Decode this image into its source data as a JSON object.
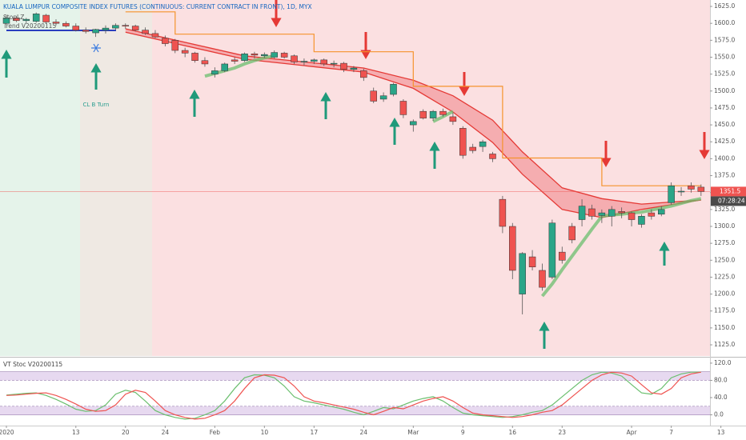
{
  "chart_data": [
    {
      "type": "candlestick",
      "title": "KUALA LUMPUR COMPOSITE INDEX FUTURES (CONTINUOUS: CURRENT CONTRACT IN FRONT), 1D, MYX",
      "legend": [
        "StopLZ",
        "Trend V20200115"
      ],
      "annotation": "CL B Turn",
      "countdown": "07:28:24",
      "last_price": 1351.5,
      "up_color": "#2aa588",
      "down_color": "#ef5350",
      "xlim": [
        -0.645,
        70.9
      ],
      "xticks": [
        {
          "value": 0,
          "label": "2020"
        },
        {
          "value": 7,
          "label": "13"
        },
        {
          "value": 12,
          "label": "20"
        },
        {
          "value": 16,
          "label": "24"
        },
        {
          "value": 21,
          "label": "Feb"
        },
        {
          "value": 26,
          "label": "10"
        },
        {
          "value": 31,
          "label": "17"
        },
        {
          "value": 36,
          "label": "24"
        },
        {
          "value": 41,
          "label": "Mar"
        },
        {
          "value": 46,
          "label": "9"
        },
        {
          "value": 51,
          "label": "16"
        },
        {
          "value": 56,
          "label": "23"
        },
        {
          "value": 63,
          "label": "Apr"
        },
        {
          "value": 67,
          "label": "7"
        },
        {
          "value": 72,
          "label": "13"
        }
      ],
      "ylim": [
        1108.5,
        1634.5
      ],
      "yticks": [
        {
          "value": 1125,
          "label": "1125.0"
        },
        {
          "value": 1150,
          "label": "1150.0"
        },
        {
          "value": 1175,
          "label": "1175.0"
        },
        {
          "value": 1200,
          "label": "1200.0"
        },
        {
          "value": 1225,
          "label": "1225.0"
        },
        {
          "value": 1250,
          "label": "1250.0"
        },
        {
          "value": 1275,
          "label": "1275.0"
        },
        {
          "value": 1300,
          "label": "1300.0"
        },
        {
          "value": 1325,
          "label": "1325.0"
        },
        {
          "value": 1350,
          "label": "1350.0"
        },
        {
          "value": 1375,
          "label": "1375.0"
        },
        {
          "value": 1400,
          "label": "1400.0"
        },
        {
          "value": 1425,
          "label": "1425.0"
        },
        {
          "value": 1450,
          "label": "1450.0"
        },
        {
          "value": 1475,
          "label": "1475.0"
        },
        {
          "value": 1500,
          "label": "1500.0"
        },
        {
          "value": 1525,
          "label": "1525.0"
        },
        {
          "value": 1550,
          "label": "1550.0"
        },
        {
          "value": 1575,
          "label": "1575.0"
        },
        {
          "value": 1600,
          "label": "1600.0"
        },
        {
          "value": 1625,
          "label": "1625.0"
        }
      ],
      "open": [
        1600,
        1608,
        1604,
        1603,
        1612,
        1602,
        1600,
        1596,
        1590,
        1586,
        1590,
        1593,
        1597,
        1596,
        1590,
        1585,
        1578,
        1575,
        1560,
        1556,
        1545,
        1525,
        1530,
        1546,
        1545,
        1555,
        1552,
        1550,
        1556,
        1552,
        1543,
        1544,
        1546,
        1540,
        1541,
        1532,
        1530,
        1500,
        1488,
        1495,
        1485,
        1450,
        1470,
        1460,
        1470,
        1462,
        1445,
        1417,
        1418,
        1407,
        1340,
        1300,
        1200,
        1255,
        1235,
        1225,
        1262,
        1300,
        1310,
        1326,
        1316,
        1315,
        1322,
        1320,
        1303,
        1320,
        1318,
        1335,
        1352,
        1360,
        1358
      ],
      "high": [
        1612,
        1611,
        1608,
        1616,
        1614,
        1606,
        1603,
        1600,
        1594,
        1592,
        1597,
        1600,
        1600,
        1598,
        1594,
        1590,
        1582,
        1577,
        1564,
        1558,
        1550,
        1535,
        1542,
        1550,
        1557,
        1558,
        1557,
        1560,
        1558,
        1554,
        1548,
        1548,
        1548,
        1545,
        1543,
        1537,
        1533,
        1505,
        1498,
        1512,
        1488,
        1458,
        1473,
        1472,
        1474,
        1468,
        1448,
        1422,
        1428,
        1410,
        1345,
        1305,
        1262,
        1265,
        1245,
        1310,
        1270,
        1305,
        1340,
        1332,
        1325,
        1330,
        1328,
        1322,
        1318,
        1325,
        1330,
        1365,
        1358,
        1365,
        1362
      ],
      "low": [
        1598,
        1602,
        1600,
        1601,
        1600,
        1597,
        1594,
        1588,
        1585,
        1580,
        1585,
        1590,
        1592,
        1588,
        1583,
        1578,
        1566,
        1556,
        1550,
        1542,
        1536,
        1520,
        1528,
        1540,
        1543,
        1548,
        1549,
        1548,
        1548,
        1540,
        1538,
        1540,
        1537,
        1535,
        1528,
        1528,
        1515,
        1482,
        1484,
        1492,
        1460,
        1440,
        1458,
        1456,
        1462,
        1450,
        1400,
        1408,
        1410,
        1395,
        1290,
        1222,
        1170,
        1235,
        1205,
        1222,
        1245,
        1275,
        1300,
        1310,
        1305,
        1300,
        1312,
        1300,
        1298,
        1310,
        1315,
        1332,
        1345,
        1350,
        1345
      ],
      "close": [
        1608,
        1604,
        1606,
        1614,
        1602,
        1600,
        1596,
        1590,
        1588,
        1591,
        1593,
        1597,
        1596,
        1590,
        1585,
        1580,
        1570,
        1560,
        1556,
        1545,
        1540,
        1530,
        1540,
        1544,
        1555,
        1553,
        1554,
        1557,
        1550,
        1543,
        1544,
        1546,
        1540,
        1541,
        1532,
        1534,
        1520,
        1485,
        1493,
        1510,
        1465,
        1455,
        1460,
        1470,
        1465,
        1455,
        1405,
        1412,
        1425,
        1400,
        1300,
        1235,
        1260,
        1240,
        1210,
        1305,
        1250,
        1280,
        1330,
        1315,
        1320,
        1325,
        1320,
        1310,
        1315,
        1315,
        1325,
        1360,
        1352,
        1355,
        1351.5
      ],
      "stop": {
        "color": "#f5932c",
        "x": [
          12,
          17,
          17,
          31,
          31,
          41,
          41,
          50,
          50,
          60,
          60,
          70
        ],
        "values": [
          1617,
          1617,
          1584,
          1584,
          1558,
          1558,
          1507,
          1507,
          1401,
          1401,
          1360,
          1360
        ]
      },
      "band": {
        "color": "#e53935",
        "fill": "#f4a0a4",
        "x": [
          12,
          24,
          36,
          41,
          45,
          49,
          52,
          56,
          60,
          64,
          70
        ],
        "upper": [
          1592,
          1552,
          1534,
          1516,
          1493,
          1457,
          1410,
          1357,
          1341,
          1333,
          1339
        ],
        "lower": [
          1587,
          1547,
          1528,
          1504,
          1469,
          1424,
          1377,
          1325,
          1313,
          1325,
          1339
        ]
      },
      "trail": {
        "color": "#6bbf6e",
        "values": [
          null,
          null,
          null,
          null,
          null,
          null,
          null,
          null,
          null,
          null,
          null,
          null,
          null,
          null,
          null,
          null,
          null,
          null,
          null,
          null,
          1522,
          1526,
          1530,
          1534,
          1540,
          1545,
          1549,
          1552,
          null,
          null,
          null,
          null,
          null,
          null,
          null,
          null,
          null,
          null,
          null,
          null,
          null,
          null,
          null,
          1455,
          1462,
          1470,
          null,
          null,
          null,
          null,
          null,
          null,
          null,
          null,
          1197,
          1215,
          1236,
          1256,
          1276,
          1296,
          1315,
          1317,
          1318,
          1320,
          1321,
          1324,
          1327,
          1330,
          1334,
          1338,
          1341
        ]
      }
    },
    {
      "type": "line",
      "title": "VT Stoc V20200115",
      "ylim": [
        -25,
        131
      ],
      "yticks": [
        {
          "value": 120,
          "label": "120.0"
        },
        {
          "value": 80,
          "label": "80.0"
        },
        {
          "value": 40,
          "label": "40.0"
        },
        {
          "value": 0,
          "label": "0.0"
        }
      ],
      "bands": [
        [
          80,
          100
        ],
        [
          0,
          20
        ]
      ],
      "series": [
        {
          "color": "#6bbf6e",
          "values": [
            46,
            48,
            50,
            51,
            45,
            36,
            25,
            13,
            8,
            10,
            23,
            48,
            57,
            52,
            32,
            10,
            0,
            -6,
            -10,
            -8,
            0,
            10,
            32,
            61,
            86,
            93,
            92,
            86,
            67,
            42,
            32,
            28,
            23,
            18,
            13,
            6,
            0,
            8,
            17,
            14,
            23,
            32,
            38,
            42,
            32,
            17,
            4,
            0,
            -2,
            -4,
            -6,
            -4,
            0,
            6,
            10,
            23,
            42,
            61,
            80,
            93,
            99,
            97,
            90,
            70,
            51,
            48,
            61,
            86,
            95,
            99,
            99
          ]
        },
        {
          "color": "#ef5350",
          "values": [
            45,
            46,
            48,
            50,
            51,
            45,
            36,
            25,
            13,
            8,
            10,
            23,
            48,
            57,
            52,
            32,
            10,
            0,
            -6,
            -10,
            -8,
            0,
            10,
            32,
            61,
            86,
            93,
            92,
            86,
            67,
            42,
            32,
            28,
            23,
            18,
            13,
            6,
            0,
            8,
            17,
            14,
            23,
            32,
            38,
            42,
            32,
            17,
            4,
            0,
            -2,
            -4,
            -6,
            -4,
            0,
            6,
            10,
            23,
            42,
            61,
            80,
            93,
            99,
            97,
            90,
            70,
            51,
            48,
            61,
            86,
            95,
            99
          ]
        }
      ]
    }
  ]
}
